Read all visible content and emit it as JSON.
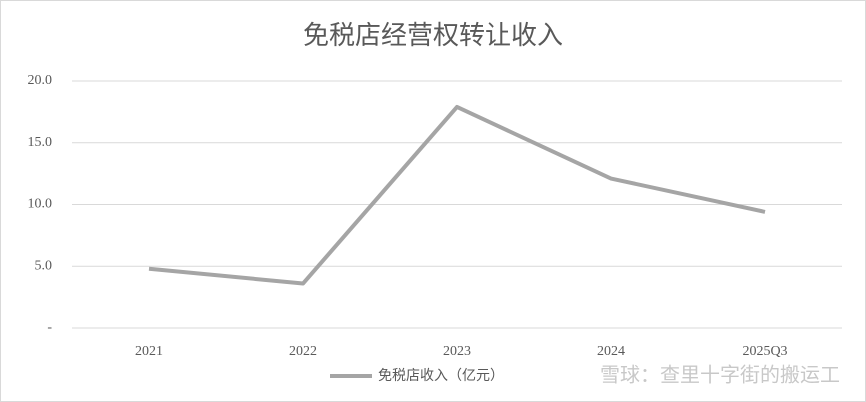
{
  "chart_data": {
    "type": "line",
    "title": "免税店经营权转让收入",
    "categories": [
      "2021",
      "2022",
      "2023",
      "2024",
      "2025Q3"
    ],
    "series": [
      {
        "name": "免税店收入（亿元）",
        "color": "#a5a5a5",
        "values": [
          4.8,
          3.6,
          17.9,
          12.1,
          9.4
        ]
      }
    ],
    "ylim": [
      0,
      20
    ],
    "yticks": [
      {
        "value": 0,
        "label": "-"
      },
      {
        "value": 5,
        "label": "5.0"
      },
      {
        "value": 10,
        "label": "10.0"
      },
      {
        "value": 15,
        "label": "15.0"
      },
      {
        "value": 20,
        "label": "20.0"
      }
    ],
    "grid": true,
    "legend": "bottom",
    "watermark": "雪球：查里十字街的搬运工"
  }
}
